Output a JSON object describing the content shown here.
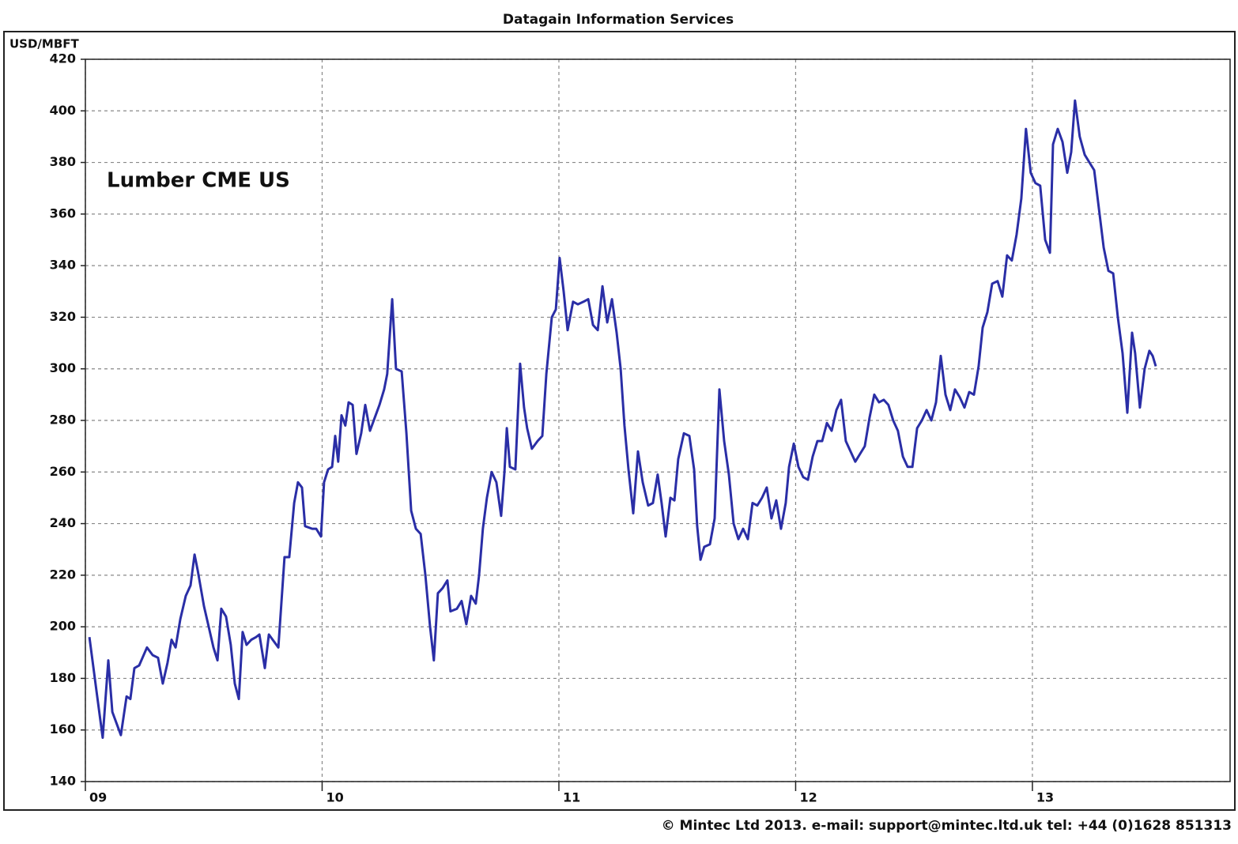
{
  "chart_data": {
    "type": "line",
    "title": "Datagain Information Services",
    "y_label": "USD/MBFT",
    "footer": "© Mintec Ltd 2013. e-mail: support@mintec.ltd.uk tel: +44 (0)1628 851313",
    "grid": true,
    "xlim": [
      2009,
      2013.835
    ],
    "xticks": [
      {
        "value": 2009,
        "label": "09"
      },
      {
        "value": 2010,
        "label": "10"
      },
      {
        "value": 2011,
        "label": "11"
      },
      {
        "value": 2012,
        "label": "12"
      },
      {
        "value": 2013,
        "label": "13"
      }
    ],
    "ylim": [
      140,
      420
    ],
    "yticks": [
      140,
      160,
      180,
      200,
      220,
      240,
      260,
      280,
      300,
      320,
      340,
      360,
      380,
      400,
      420
    ],
    "x": [
      2009.017,
      2009.047,
      2009.073,
      2009.097,
      2009.114,
      2009.15,
      2009.174,
      2009.19,
      2009.207,
      2009.227,
      2009.26,
      2009.284,
      2009.307,
      2009.327,
      2009.347,
      2009.364,
      2009.381,
      2009.401,
      2009.424,
      2009.444,
      2009.461,
      2009.474,
      2009.501,
      2009.521,
      2009.541,
      2009.558,
      2009.574,
      2009.594,
      2009.614,
      2009.631,
      2009.648,
      2009.664,
      2009.681,
      2009.701,
      2009.721,
      2009.735,
      2009.758,
      2009.775,
      2009.791,
      2009.815,
      2009.841,
      2009.861,
      2009.882,
      2009.898,
      2009.915,
      2009.928,
      2009.958,
      2009.975,
      2009.995,
      2010.008,
      2010.025,
      2010.042,
      2010.055,
      2010.068,
      2010.082,
      2010.098,
      2010.112,
      2010.129,
      2010.145,
      2010.165,
      2010.182,
      2010.202,
      2010.222,
      2010.242,
      2010.262,
      2010.275,
      2010.296,
      2010.312,
      2010.336,
      2010.356,
      2010.376,
      2010.396,
      2010.416,
      2010.436,
      2010.456,
      2010.472,
      2010.489,
      2010.509,
      2010.529,
      2010.542,
      2010.569,
      2010.589,
      2010.609,
      2010.629,
      2010.649,
      2010.663,
      2010.679,
      2010.696,
      2010.716,
      2010.736,
      2010.756,
      2010.77,
      2010.78,
      2010.793,
      2010.816,
      2010.836,
      2010.853,
      2010.866,
      2010.886,
      2010.91,
      2010.93,
      2010.947,
      2010.97,
      2010.987,
      2011.003,
      2011.02,
      2011.037,
      2011.06,
      2011.08,
      2011.104,
      2011.124,
      2011.144,
      2011.164,
      2011.184,
      2011.204,
      2011.224,
      2011.244,
      2011.261,
      2011.277,
      2011.294,
      2011.314,
      2011.334,
      2011.354,
      2011.377,
      2011.397,
      2011.417,
      2011.434,
      2011.451,
      2011.471,
      2011.488,
      2011.504,
      2011.528,
      2011.551,
      2011.571,
      2011.584,
      2011.598,
      2011.614,
      2011.638,
      2011.658,
      2011.678,
      2011.698,
      2011.718,
      2011.738,
      2011.758,
      2011.778,
      2011.798,
      2011.818,
      2011.838,
      2011.858,
      2011.878,
      2011.898,
      2011.918,
      2011.938,
      2011.958,
      2011.972,
      2011.992,
      2012.012,
      2012.032,
      2012.052,
      2012.072,
      2012.092,
      2012.112,
      2012.132,
      2012.152,
      2012.172,
      2012.192,
      2012.212,
      2012.232,
      2012.252,
      2012.272,
      2012.292,
      2012.312,
      2012.332,
      2012.352,
      2012.372,
      2012.392,
      2012.412,
      2012.432,
      2012.453,
      2012.473,
      2012.493,
      2012.513,
      2012.533,
      2012.553,
      2012.573,
      2012.593,
      2012.613,
      2012.633,
      2012.653,
      2012.673,
      2012.693,
      2012.713,
      2012.733,
      2012.753,
      2012.773,
      2012.79,
      2012.81,
      2012.83,
      2012.853,
      2012.873,
      2012.893,
      2012.913,
      2012.933,
      2012.953,
      2012.973,
      2012.993,
      2013.013,
      2013.033,
      2013.054,
      2013.074,
      2013.087,
      2013.107,
      2013.127,
      2013.147,
      2013.164,
      2013.18,
      2013.2,
      2013.221,
      2013.241,
      2013.261,
      2013.281,
      2013.301,
      2013.321,
      2013.341,
      2013.361,
      2013.381,
      2013.401,
      2013.421,
      2013.434,
      2013.454,
      2013.474,
      2013.494,
      2013.508,
      2013.521
    ],
    "series": [
      {
        "name": "Lumber CME US",
        "color": "#2a2ea6",
        "values": [
          196,
          175,
          157,
          187,
          167,
          158,
          173,
          172,
          184,
          185,
          192,
          189,
          188,
          178,
          186,
          195,
          192,
          203,
          212,
          216,
          228,
          222,
          208,
          200,
          192,
          187,
          207,
          204,
          193,
          178,
          172,
          198,
          193,
          195,
          196,
          197,
          184,
          197,
          195,
          192,
          227,
          227,
          248,
          256,
          254,
          239,
          238,
          238,
          235,
          256,
          261,
          262,
          274,
          264,
          282,
          278,
          287,
          286,
          267,
          275,
          286,
          276,
          281,
          286,
          292,
          298,
          327,
          300,
          299,
          275,
          245,
          238,
          236,
          220,
          200,
          187,
          213,
          215,
          218,
          206,
          207,
          210,
          201,
          212,
          209,
          220,
          238,
          250,
          260,
          256,
          243,
          260,
          277,
          262,
          261,
          302,
          285,
          277,
          269,
          272,
          274,
          298,
          320,
          323,
          343,
          330,
          315,
          326,
          325,
          326,
          327,
          317,
          315,
          332,
          318,
          327,
          314,
          300,
          278,
          261,
          244,
          268,
          256,
          247,
          248,
          259,
          248,
          235,
          250,
          249,
          265,
          275,
          274,
          261,
          239,
          226,
          231,
          232,
          242,
          292,
          272,
          259,
          240,
          234,
          238,
          234,
          248,
          247,
          250,
          254,
          242,
          249,
          238,
          248,
          262,
          271,
          262,
          258,
          257,
          266,
          272,
          272,
          279,
          276,
          284,
          288,
          272,
          268,
          264,
          267,
          270,
          281,
          290,
          287,
          288,
          286,
          280,
          276,
          266,
          262,
          262,
          277,
          280,
          284,
          280,
          287,
          305,
          290,
          284,
          292,
          289,
          285,
          291,
          290,
          301,
          316,
          322,
          333,
          334,
          328,
          344,
          342,
          352,
          366,
          393,
          376,
          372,
          371,
          350,
          345,
          387,
          393,
          388,
          376,
          384,
          404,
          390,
          383,
          380,
          377,
          362,
          347,
          338,
          337,
          320,
          306,
          283,
          314,
          306,
          285,
          300,
          307,
          305,
          301
        ]
      }
    ]
  }
}
